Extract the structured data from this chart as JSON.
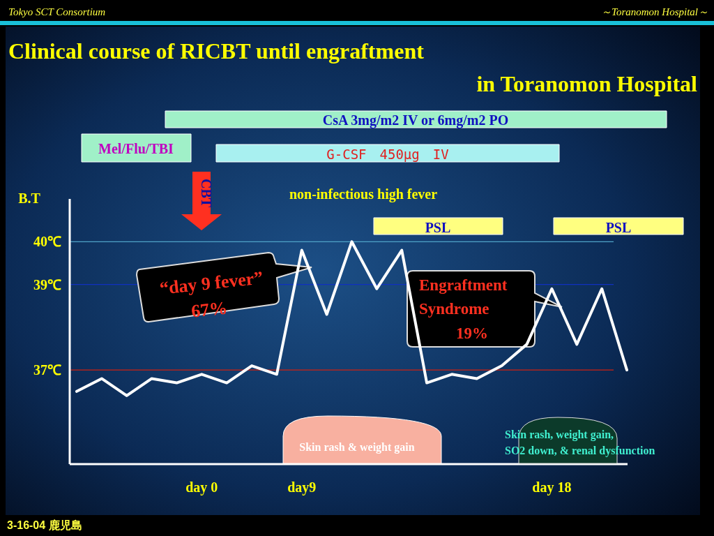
{
  "chart_data": {
    "type": "line",
    "title": "Clinical course of RICBT until  engraftment",
    "subtitle": "in Toranomon Hospital",
    "ylabel": "B.T",
    "categories": [
      null,
      null,
      null,
      null,
      null,
      "day 0",
      null,
      null,
      null,
      "day9",
      null,
      null,
      null,
      null,
      null,
      null,
      null,
      null,
      null,
      "day 18",
      null,
      null,
      null
    ],
    "series": [
      {
        "color": "#ffffff",
        "values": [
          36.5,
          36.8,
          36.4,
          36.8,
          36.7,
          36.9,
          36.7,
          37.1,
          36.9,
          39.8,
          38.3,
          40.0,
          38.9,
          39.8,
          36.7,
          36.9,
          36.8,
          37.1,
          37.6,
          38.9,
          37.6,
          38.9,
          37.0
        ]
      }
    ],
    "line_style": "solid",
    "ylim": [
      34.8,
      41
    ],
    "yticks": [
      {
        "value": 37,
        "label": "37℃"
      },
      {
        "value": 39,
        "label": "39℃"
      },
      {
        "value": 40,
        "label": "40℃"
      }
    ],
    "ref_lines": [
      {
        "axis": "y",
        "value": 40,
        "color": "#4fa3c8"
      },
      {
        "axis": "y",
        "value": 39,
        "color": "#1030c0"
      },
      {
        "axis": "y",
        "value": 37,
        "color": "#d02010"
      }
    ],
    "annotations": [
      "Tokyo SCT Consortium",
      "～Toranomon  Hospital～",
      "CsA 3mg/m2 IV or 6mg/m2 PO",
      "Mel/Flu/TBI",
      "G-CSF　450μg　IV",
      "CBT",
      "non-infectious high fever",
      "PSL",
      "PSL",
      "“day 9 fever”",
      "67%",
      "Engraftment",
      "Syndrome",
      "19%",
      "Skin rash & weight gain",
      "Skin rash, weight gain,",
      "SO2 down, & renal dysfunction",
      "3-16-04 鹿児島"
    ]
  }
}
